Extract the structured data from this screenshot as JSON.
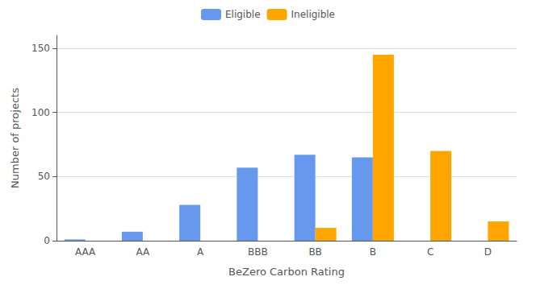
{
  "chart_data": {
    "type": "bar",
    "categories": [
      "AAA",
      "AA",
      "A",
      "BBB",
      "BB",
      "B",
      "C",
      "D"
    ],
    "series": [
      {
        "name": "Eligible",
        "color": "#6699EE",
        "values": [
          1,
          7,
          28,
          57,
          67,
          65,
          0,
          0
        ]
      },
      {
        "name": "Ineligible",
        "color": "#FFA500",
        "values": [
          0,
          0,
          0,
          0,
          10,
          145,
          70,
          15
        ]
      }
    ],
    "xlabel": "BeZero Carbon Rating",
    "ylabel": "Number of projects",
    "ylim": [
      0,
      160
    ],
    "yticks": [
      0,
      50,
      100,
      150
    ],
    "grid": true,
    "legend": "top"
  }
}
